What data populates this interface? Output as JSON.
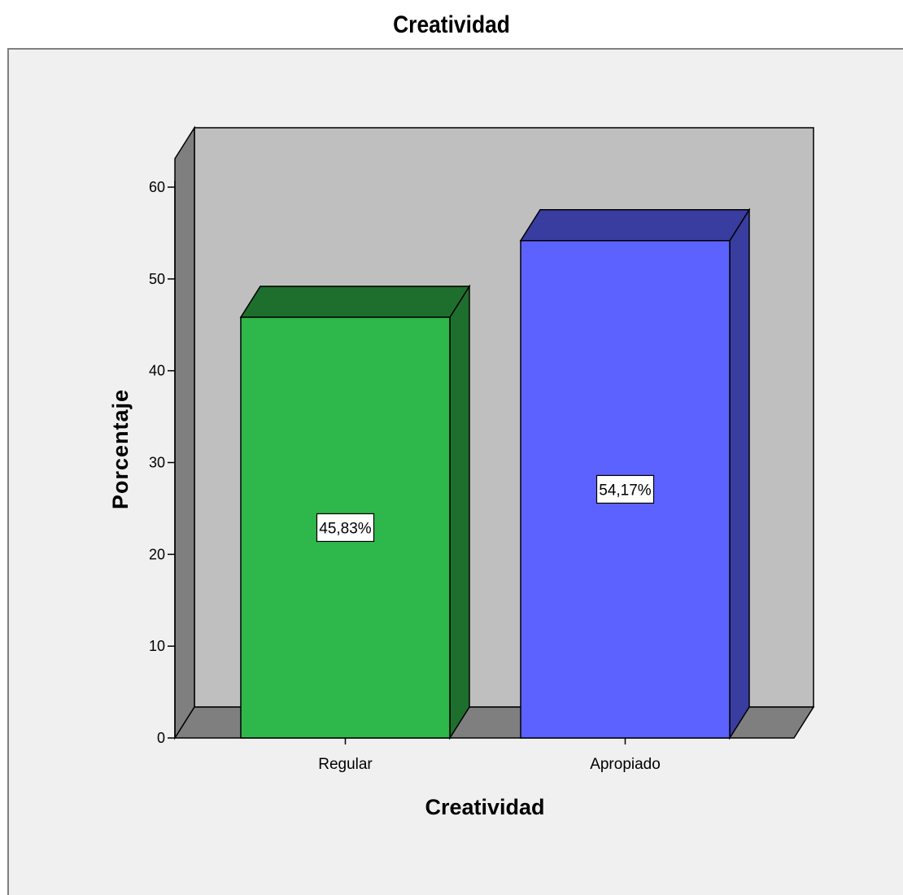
{
  "chart_data": {
    "type": "bar",
    "title": "Creatividad",
    "xlabel": "Creatividad",
    "ylabel": "Porcentaje",
    "categories": [
      "Regular",
      "Apropiado"
    ],
    "values": [
      45.83,
      54.17
    ],
    "data_labels": [
      "45,83%",
      "54,17%"
    ],
    "ylim": [
      0,
      60
    ],
    "yticks": [
      0,
      10,
      20,
      30,
      40,
      50,
      60
    ],
    "three_d": true,
    "grid": false,
    "legend": "none"
  },
  "colors": {
    "bar_front": [
      "#2eb84b",
      "#5c62ff"
    ],
    "bar_top": [
      "#1e6f2e",
      "#393da0"
    ],
    "bar_side": [
      "#1e6f2e",
      "#393da0"
    ],
    "plot_background": "#bfbfbf",
    "floor": "#7f7f7f",
    "left_wall": "#7f7f7f",
    "outer_background": "#f0f0f0"
  }
}
